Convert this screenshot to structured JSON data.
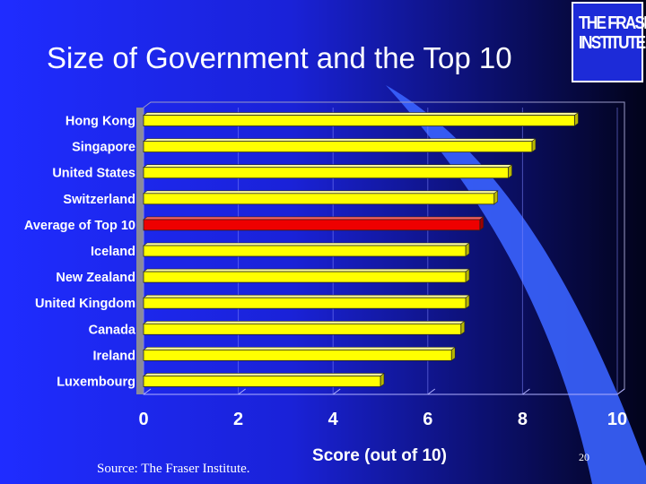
{
  "slide": {
    "title": "Size of Government and the Top 10",
    "source": "Source: The Fraser Institute.",
    "slide_number": "20"
  },
  "logo": {
    "line1": "THE FRASER",
    "line2": "INSTITUTE"
  },
  "colors": {
    "bar_default": "#ffff00",
    "bar_highlight": "#ee0000",
    "background": "#1f2cff"
  },
  "chart_data": {
    "type": "bar",
    "orientation": "horizontal",
    "categories": [
      "Hong Kong",
      "Singapore",
      "United States",
      "Switzerland",
      "Average of Top 10",
      "Iceland",
      "New Zealand",
      "United Kingdom",
      "Canada",
      "Ireland",
      "Luxembourg"
    ],
    "values": [
      9.1,
      8.2,
      7.7,
      7.4,
      7.1,
      6.8,
      6.8,
      6.8,
      6.7,
      6.5,
      5.0
    ],
    "highlight": "Average of Top 10",
    "xlabel": "Score (out of 10)",
    "ylabel": "",
    "xlim": [
      0,
      10
    ],
    "xticks": [
      "0",
      "2",
      "4",
      "6",
      "8",
      "10"
    ],
    "grid": true,
    "legend": "none"
  }
}
